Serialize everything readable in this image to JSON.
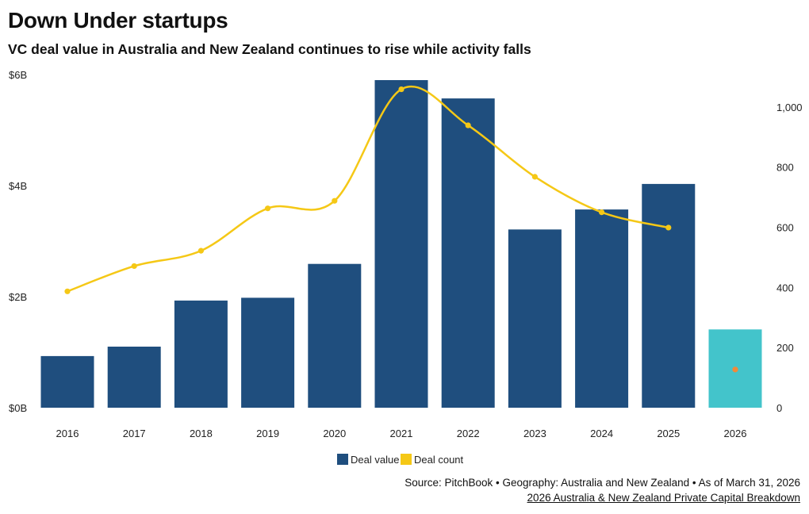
{
  "header": {
    "title": "Down Under startups",
    "subtitle": "VC deal value in Australia and New Zealand continues to rise while activity falls"
  },
  "footer": {
    "source": "Source: PitchBook • Geography: Australia and New Zealand • As of March 31, 2026",
    "report_link": "2026 Australia & New Zealand Private Capital Breakdown"
  },
  "chart_data": {
    "type": "bar",
    "categories": [
      "2016",
      "2017",
      "2018",
      "2019",
      "2020",
      "2021",
      "2022",
      "2023",
      "2024",
      "2025",
      "2026"
    ],
    "series": [
      {
        "name": "Deal value",
        "type": "bar",
        "axis": "left",
        "values": [
          0.93,
          1.1,
          1.93,
          1.98,
          2.59,
          5.9,
          5.57,
          3.21,
          3.57,
          4.03,
          1.41
        ],
        "color": "#1f4e7e",
        "highlight_last_color": "#43c4cb"
      },
      {
        "name": "Deal count",
        "type": "line",
        "axis": "right",
        "values": [
          387,
          471,
          522,
          663,
          688,
          1059,
          939,
          768,
          650,
          599,
          127
        ],
        "color": "#f5c816",
        "highlight_last_color": "#f08a3a",
        "line_through": 10
      }
    ],
    "y_left": {
      "min": 0,
      "max": 6,
      "ticks": [
        0,
        2,
        4,
        6
      ],
      "tick_labels": [
        "$0B",
        "$2B",
        "$4B",
        "$6B"
      ]
    },
    "y_right": {
      "min": 0,
      "max": 1100,
      "ticks": [
        0,
        200,
        400,
        600,
        800,
        1000
      ],
      "tick_labels": [
        "0",
        "200",
        "400",
        "600",
        "800",
        "1,000"
      ]
    },
    "grid": false,
    "legend": {
      "placement": "bottom-center",
      "entries": [
        "Deal value",
        "Deal count"
      ]
    }
  }
}
